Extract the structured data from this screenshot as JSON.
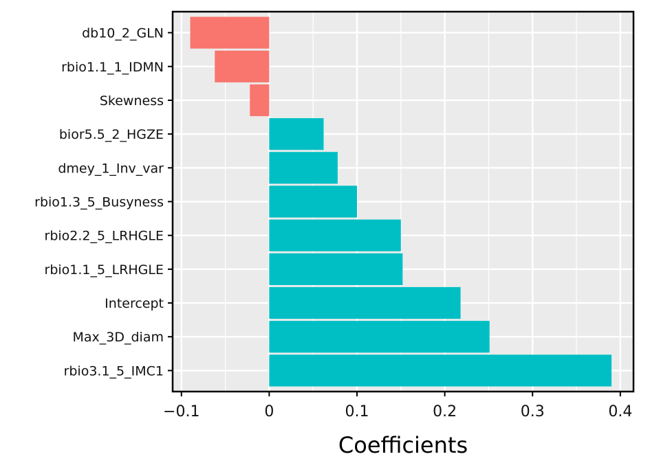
{
  "chart_data": {
    "type": "bar",
    "orientation": "horizontal",
    "title": "",
    "xlabel": "Coefficients",
    "ylabel": "",
    "xlim": [
      -0.11,
      0.415
    ],
    "xticks": [
      -0.1,
      0,
      0.1,
      0.2,
      0.3,
      0.4
    ],
    "xtick_labels": [
      "−0.1",
      "0",
      "0.1",
      "0.2",
      "0.3",
      "0.4"
    ],
    "grid": true,
    "categories": [
      "db10_2_GLN",
      "rbio1.1_1_IDMN",
      "Skewness",
      "bior5.5_2_HGZE",
      "dmey_1_Inv_var",
      "rbio1.3_5_Busyness",
      "rbio2.2_5_LRHGLE",
      "rbio1.1_5_LRHGLE",
      "Intercept",
      "Max_3D_diam",
      "rbio3.1_5_IMC1"
    ],
    "values": [
      -0.09,
      -0.062,
      -0.022,
      0.062,
      0.078,
      0.1,
      0.15,
      0.152,
      0.218,
      0.251,
      0.39
    ],
    "colors": {
      "negative": "#F8766D",
      "positive": "#00BFC4",
      "panel": "#EBEBEB",
      "grid": "#FFFFFF",
      "frame": "#000000"
    }
  }
}
